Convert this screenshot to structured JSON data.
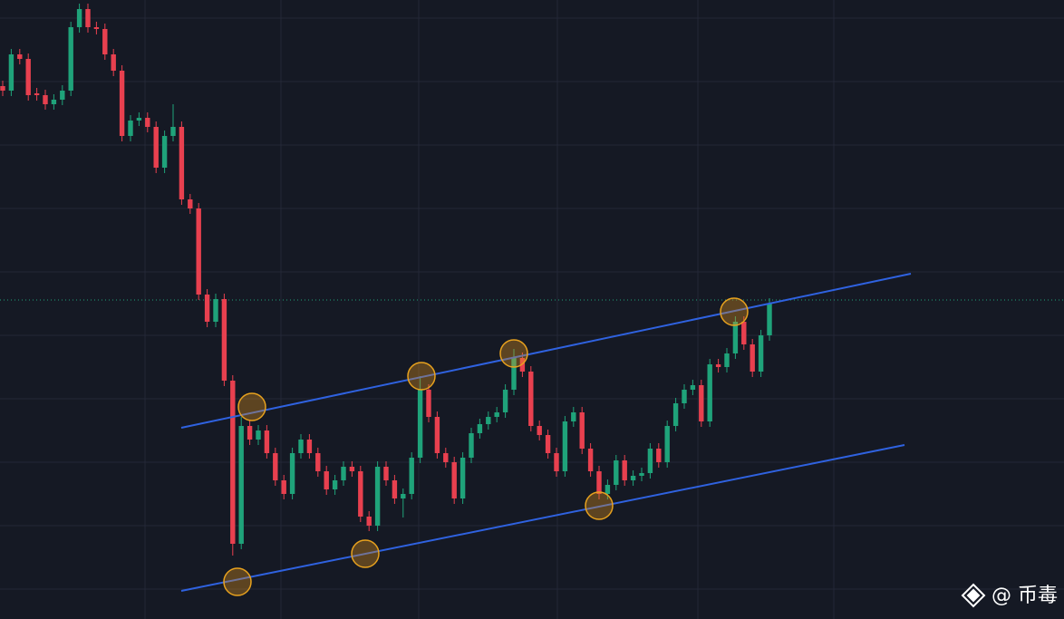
{
  "chart_data": {
    "type": "candlestick",
    "ylim": [
      0,
      683
    ],
    "up_color": "#1fa37a",
    "down_color": "#e8404f",
    "watermark": "@ 币毒",
    "series": [
      {
        "open": [
          588,
          583,
          623,
          618,
          580,
          578,
          568,
          573,
          583,
          653,
          673,
          653,
          651,
          623,
          605,
          533,
          550,
          553,
          543,
          498,
          533,
          543,
          463,
          453,
          358,
          328,
          353,
          263,
          83,
          213,
          198,
          208,
          183,
          153,
          138,
          183,
          198,
          183,
          163,
          143,
          153,
          168,
          163,
          113,
          103,
          168,
          153,
          133,
          138,
          178,
          253,
          223,
          183,
          173,
          133,
          178,
          205,
          215,
          223,
          228,
          253,
          288,
          273,
          213,
          203,
          183,
          163,
          218,
          228,
          188,
          163,
          138,
          148,
          175,
          153,
          158,
          161,
          188,
          173,
          213,
          238,
          253,
          258,
          218,
          281,
          278,
          293,
          328,
          303,
          273,
          313
        ],
        "high": [
          594,
          629,
          629,
          624,
          586,
          584,
          579,
          589,
          659,
          679,
          679,
          659,
          657,
          629,
          611,
          556,
          559,
          559,
          549,
          539,
          568,
          549,
          469,
          459,
          364,
          359,
          359,
          269,
          223,
          219,
          214,
          214,
          189,
          159,
          189,
          204,
          204,
          189,
          169,
          159,
          174,
          174,
          169,
          119,
          174,
          174,
          159,
          144,
          184,
          268,
          259,
          229,
          189,
          179,
          184,
          211,
          221,
          229,
          234,
          259,
          298,
          294,
          279,
          219,
          209,
          189,
          224,
          234,
          234,
          194,
          169,
          154,
          181,
          181,
          164,
          167,
          194,
          194,
          219,
          244,
          259,
          264,
          264,
          287,
          287,
          299,
          334,
          334,
          309,
          319,
          354
        ],
        "low": [
          577,
          577,
          612,
          572,
          572,
          562,
          562,
          567,
          577,
          647,
          647,
          645,
          617,
          599,
          527,
          527,
          544,
          537,
          492,
          492,
          527,
          457,
          447,
          352,
          322,
          322,
          257,
          70,
          77,
          192,
          192,
          177,
          147,
          132,
          132,
          177,
          177,
          157,
          137,
          137,
          147,
          157,
          107,
          97,
          97,
          147,
          127,
          112,
          132,
          172,
          217,
          177,
          167,
          127,
          127,
          172,
          199,
          209,
          217,
          222,
          247,
          267,
          207,
          197,
          177,
          157,
          157,
          212,
          182,
          157,
          132,
          132,
          142,
          147,
          147,
          152,
          155,
          167,
          167,
          207,
          232,
          247,
          212,
          212,
          272,
          272,
          287,
          297,
          267,
          267,
          307
        ],
        "close": [
          583,
          623,
          618,
          578,
          578,
          568,
          573,
          583,
          653,
          673,
          653,
          651,
          623,
          605,
          533,
          550,
          553,
          543,
          498,
          533,
          543,
          463,
          453,
          358,
          328,
          353,
          263,
          83,
          213,
          198,
          208,
          183,
          153,
          138,
          183,
          198,
          183,
          163,
          143,
          153,
          168,
          163,
          113,
          103,
          168,
          153,
          133,
          138,
          178,
          253,
          223,
          183,
          173,
          133,
          178,
          205,
          215,
          223,
          228,
          253,
          288,
          273,
          213,
          203,
          183,
          163,
          218,
          228,
          188,
          163,
          138,
          148,
          175,
          153,
          158,
          161,
          188,
          173,
          213,
          238,
          253,
          258,
          218,
          281,
          278,
          293,
          328,
          303,
          273,
          313,
          348
        ]
      }
    ]
  }
}
